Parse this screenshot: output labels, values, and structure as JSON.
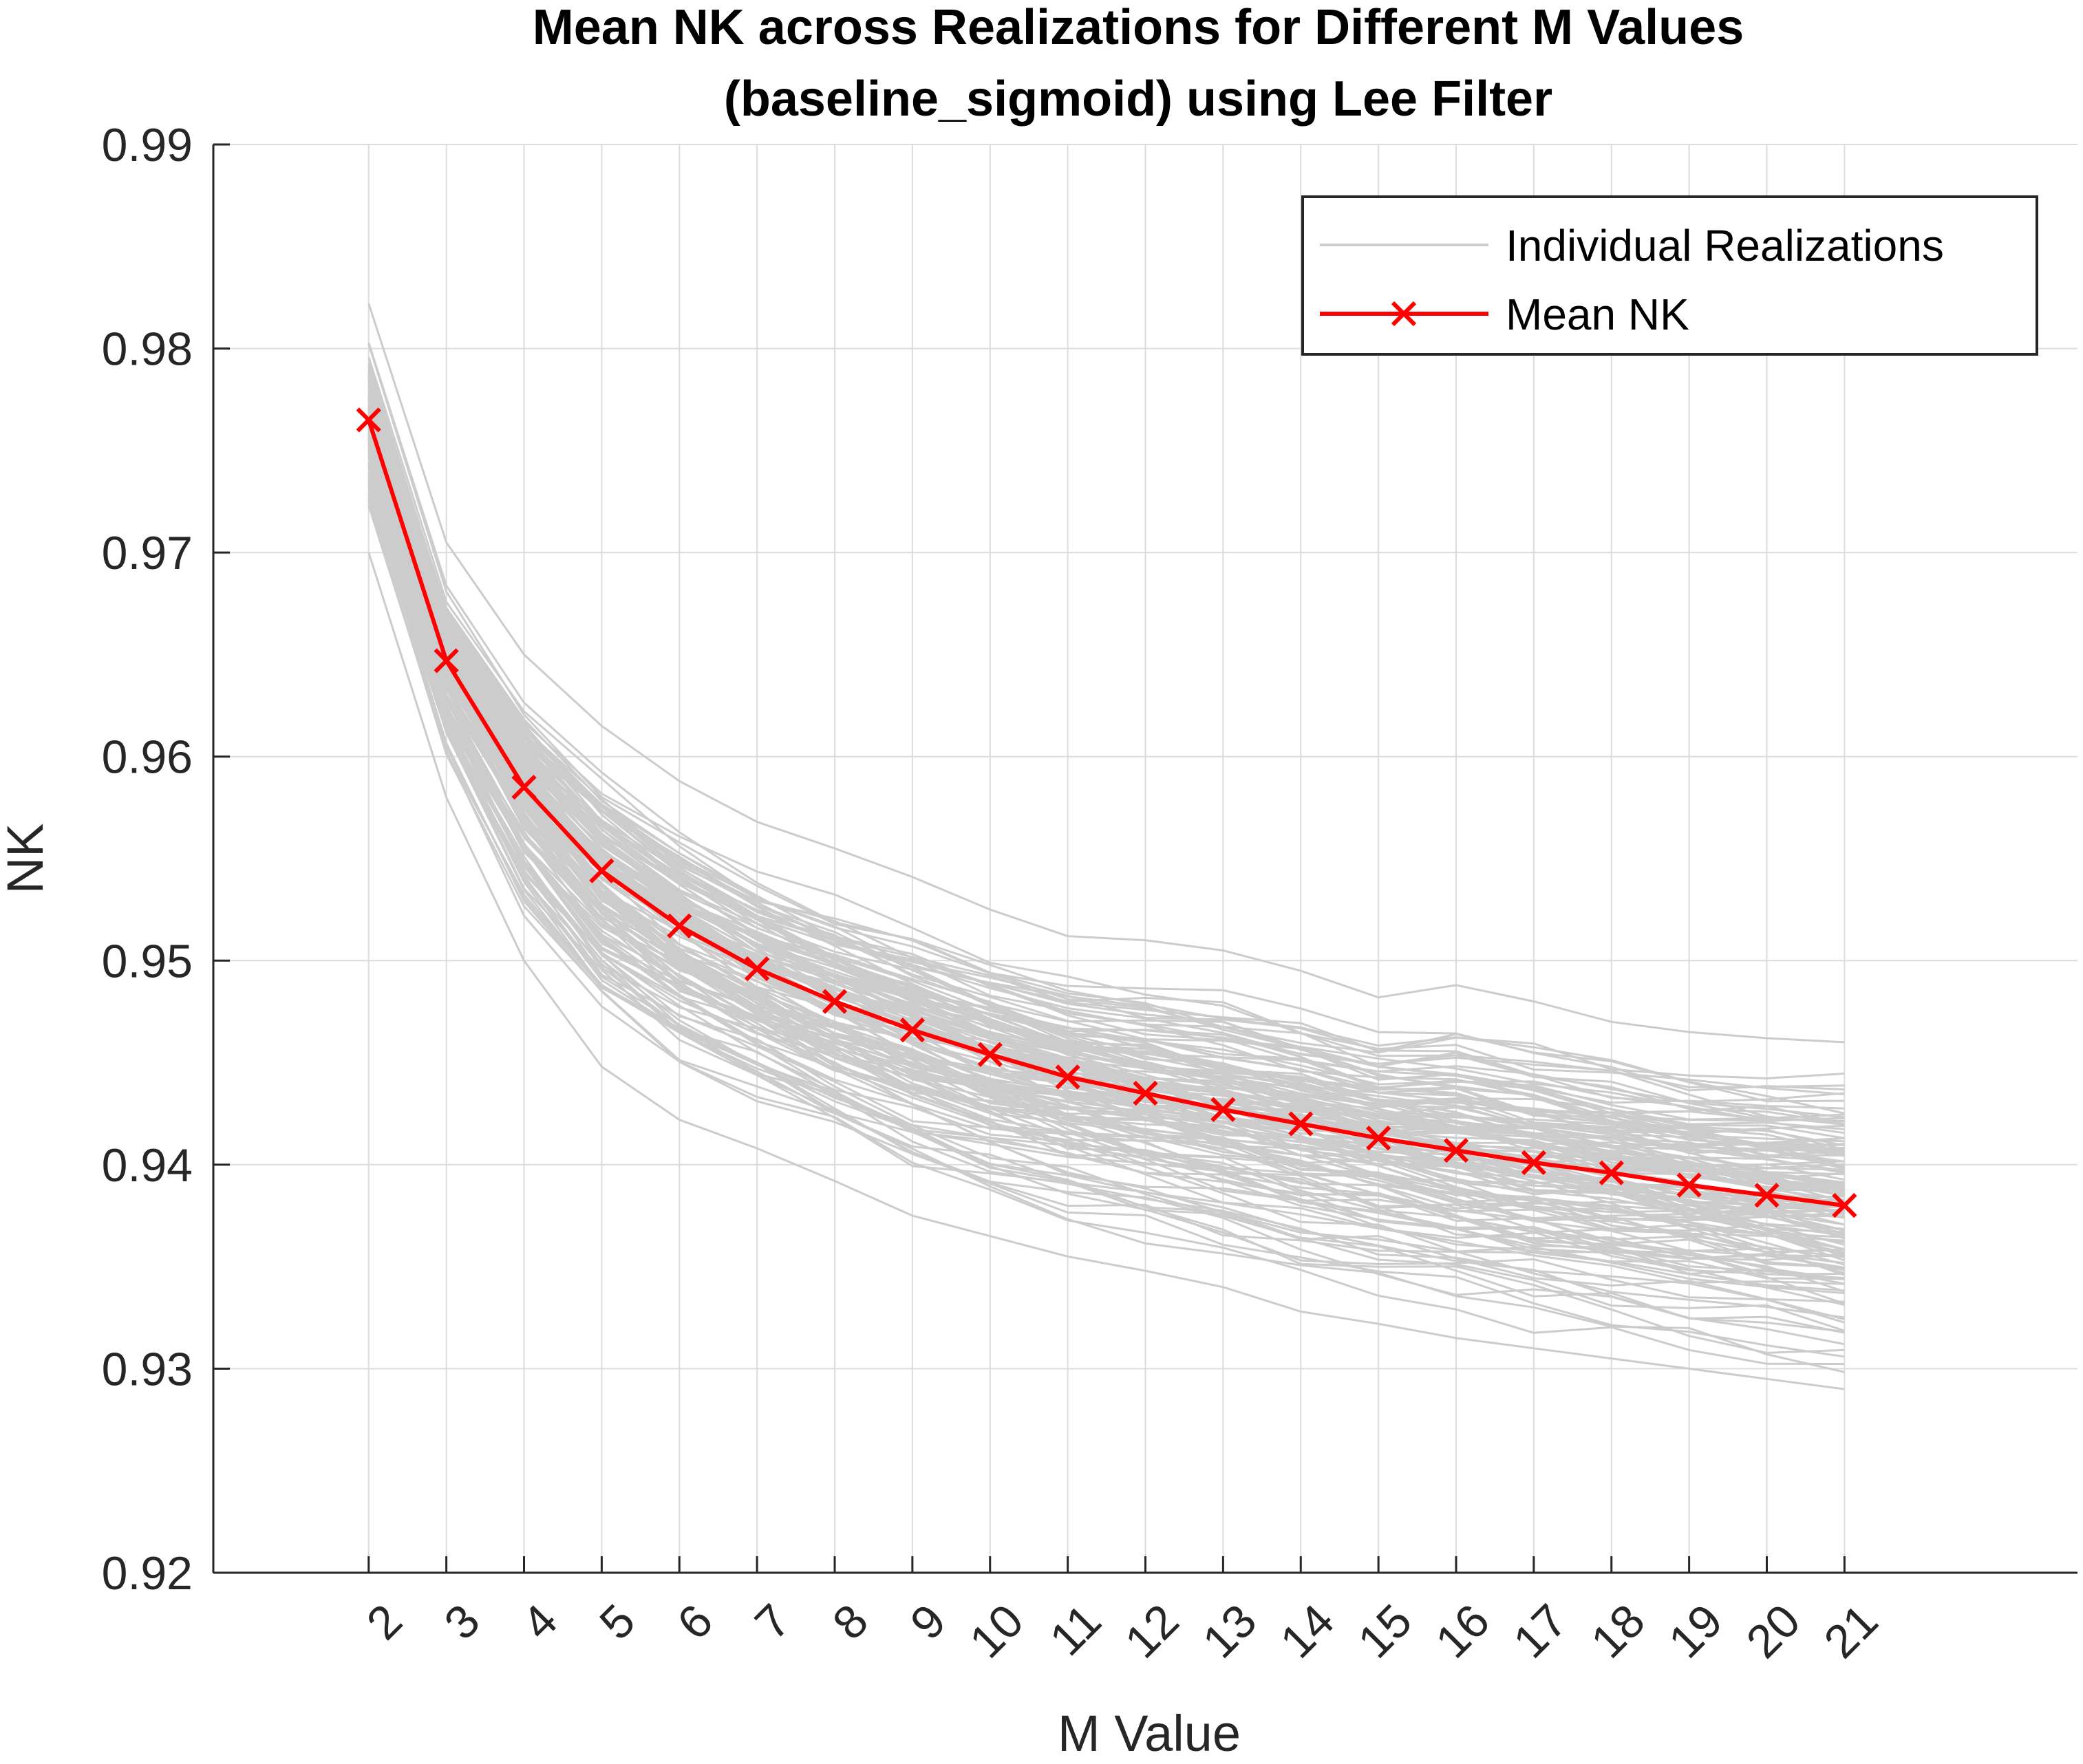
{
  "chart_data": {
    "type": "line",
    "title": [
      "Mean NK across Realizations for Different M Values",
      "(baseline_sigmoid) using Lee Filter"
    ],
    "xlabel": "M Value",
    "ylabel": "NK",
    "x": [
      2,
      3,
      4,
      5,
      6,
      7,
      8,
      9,
      10,
      11,
      12,
      13,
      14,
      15,
      16,
      17,
      18,
      19,
      20,
      21
    ],
    "xlim": [
      0,
      24
    ],
    "ylim": [
      0.92,
      0.99
    ],
    "yticks": [
      "0.92",
      "0.93",
      "0.94",
      "0.95",
      "0.96",
      "0.97",
      "0.98",
      "0.99"
    ],
    "xticks": [
      "2",
      "3",
      "4",
      "5",
      "6",
      "7",
      "8",
      "9",
      "10",
      "11",
      "12",
      "13",
      "14",
      "15",
      "16",
      "17",
      "18",
      "19",
      "20",
      "21"
    ],
    "grid": true,
    "legend_position": "top-right",
    "series": [
      {
        "name": "Individual Realizations",
        "color": "#cccccc",
        "realizations": 150,
        "upper_envelope": [
          0.9822,
          0.9705,
          0.965,
          0.9615,
          0.9588,
          0.9568,
          0.9555,
          0.9541,
          0.9525,
          0.9512,
          0.951,
          0.9505,
          0.9495,
          0.9482,
          0.9488,
          0.948,
          0.947,
          0.9465,
          0.9462,
          0.946
        ],
        "lower_envelope": [
          0.97,
          0.958,
          0.95,
          0.9448,
          0.9422,
          0.9408,
          0.9392,
          0.9375,
          0.9365,
          0.9355,
          0.9348,
          0.934,
          0.9328,
          0.9322,
          0.9315,
          0.931,
          0.9305,
          0.93,
          0.9295,
          0.929
        ]
      },
      {
        "name": "Mean NK",
        "color": "#ff0000",
        "marker": "x",
        "values": [
          0.9765,
          0.9647,
          0.9585,
          0.9544,
          0.9517,
          0.9496,
          0.948,
          0.9466,
          0.9454,
          0.9443,
          0.9435,
          0.9427,
          0.942,
          0.9413,
          0.9407,
          0.9401,
          0.9396,
          0.939,
          0.9385,
          0.938
        ]
      }
    ]
  }
}
